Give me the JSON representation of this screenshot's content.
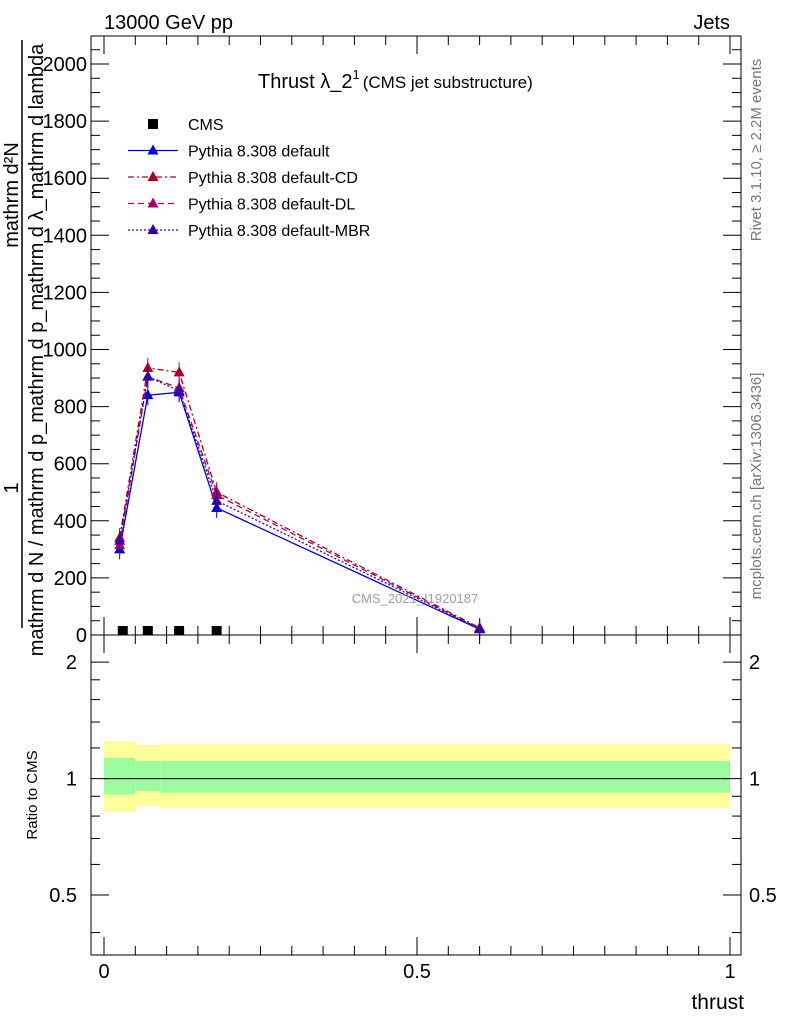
{
  "header": {
    "left": "13000 GeV pp",
    "right": "Jets"
  },
  "side_labels": {
    "rivet": "Rivet 3.1.10, ≥ 2.2M events",
    "mcplots": "mcplots.cern.ch [arXiv:1306.3436]"
  },
  "watermark": "CMS_2021_I1920187",
  "chart_data": [
    {
      "type": "line",
      "title": "Thrust λ_2",
      "title_sup": "1",
      "subtitle": "(CMS jet substructure)",
      "ylabel": {
        "denominator": "mathrm d N / mathrm d p_mathrm d p_mathrm d λ_mathrm d lambda",
        "numerator_1": "1",
        "numerator_2": "mathrm d²N"
      },
      "xlabel": "thrust",
      "xlim": [
        0,
        1
      ],
      "ylim": [
        0,
        2120
      ],
      "yticks": [
        0,
        200,
        400,
        600,
        800,
        1000,
        1200,
        1400,
        1600,
        1800,
        2000
      ],
      "ytick_labels": [
        "0",
        "200",
        "400",
        "600",
        "800",
        "1000",
        "1200",
        "1400",
        "1600",
        "1800",
        "2000"
      ],
      "legend": {
        "placement": "top-left",
        "entries": [
          {
            "label": "CMS",
            "color": "#000000",
            "marker": "square",
            "dash": "none"
          },
          {
            "label": "Pythia 8.308 default",
            "color": "#0000dd",
            "marker": "triangle",
            "dash": "solid"
          },
          {
            "label": "Pythia 8.308 default-CD",
            "color": "#aa0022",
            "marker": "triangle",
            "dash": "dashdot"
          },
          {
            "label": "Pythia 8.308 default-DL",
            "color": "#aa0066",
            "marker": "triangle",
            "dash": "dash"
          },
          {
            "label": "Pythia 8.308 default-MBR",
            "color": "#3300aa",
            "marker": "triangle",
            "dash": "dot"
          }
        ]
      },
      "series": [
        {
          "name": "CMS",
          "x": [
            0.03,
            0.07,
            0.12,
            0.18
          ],
          "y": [
            3,
            6,
            4,
            2
          ]
        },
        {
          "name": "Pythia 8.308 default",
          "x": [
            0.025,
            0.07,
            0.12,
            0.18,
            0.6
          ],
          "y": [
            300,
            840,
            850,
            445,
            20
          ]
        },
        {
          "name": "Pythia 8.308 default-CD",
          "x": [
            0.025,
            0.07,
            0.12,
            0.18,
            0.6
          ],
          "y": [
            340,
            935,
            920,
            500,
            25
          ]
        },
        {
          "name": "Pythia 8.308 default-DL",
          "x": [
            0.025,
            0.07,
            0.12,
            0.18,
            0.6
          ],
          "y": [
            315,
            905,
            865,
            490,
            22
          ]
        },
        {
          "name": "Pythia 8.308 default-MBR",
          "x": [
            0.025,
            0.07,
            0.12,
            0.18,
            0.6
          ],
          "y": [
            330,
            905,
            855,
            470,
            22
          ]
        }
      ]
    },
    {
      "type": "area",
      "ylabel": "Ratio to CMS",
      "xlim": [
        0,
        1
      ],
      "ylim": [
        0.35,
        2.35
      ],
      "log_scale_y": true,
      "yticks": [
        0.5,
        1,
        2
      ],
      "ytick_labels": [
        "0.5",
        "1",
        "2"
      ],
      "xticks": [
        0,
        0.5,
        1
      ],
      "xtick_labels": [
        "0",
        "0.5",
        "1"
      ],
      "bins": [
        [
          0,
          0.05
        ],
        [
          0.05,
          0.09
        ],
        [
          0.09,
          1
        ]
      ],
      "band_inner": [
        [
          0.91,
          1.13
        ],
        [
          0.93,
          1.11
        ],
        [
          0.92,
          1.11
        ]
      ],
      "band_outer": [
        [
          0.82,
          1.25
        ],
        [
          0.85,
          1.22
        ],
        [
          0.84,
          1.23
        ]
      ],
      "colors": {
        "inner": "#9cfb9c",
        "outer": "#fdfd9c"
      }
    }
  ]
}
